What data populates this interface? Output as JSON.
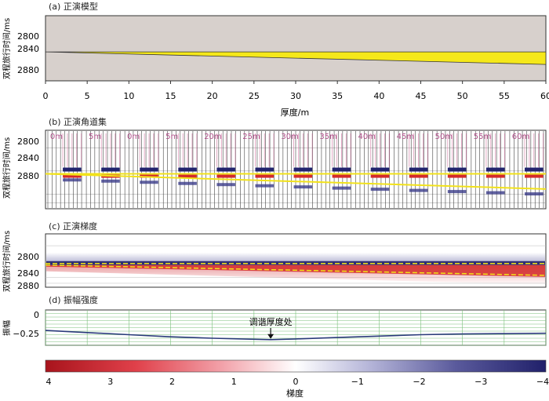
{
  "panels": {
    "a": {
      "caption": "(a)  正演模型",
      "ylabel": "双程旅行时间/ms",
      "yticks": [
        "2800",
        "2840",
        "2880"
      ],
      "xlabel": "厚度/m",
      "xticks": [
        "0",
        "5",
        "10",
        "15",
        "20",
        "25",
        "30",
        "35",
        "40",
        "45",
        "50",
        "55",
        "60"
      ]
    },
    "b": {
      "caption": "(b)  正演角道集",
      "ylabel": "双程旅行时间/ms",
      "yticks": [
        "2800",
        "2840",
        "2880"
      ],
      "gather_labels": [
        "0m",
        "5m",
        "0m",
        "5m",
        "20m",
        "25m",
        "30m",
        "35m",
        "40m",
        "45m",
        "50m",
        "55m",
        "60m"
      ]
    },
    "c": {
      "caption": "(c)  正演梯度",
      "ylabel": "双程旅行时间/ms",
      "yticks": [
        "2800",
        "2840",
        "2880"
      ]
    },
    "d": {
      "caption": "(d)  振幅强度",
      "ylabel": "振幅",
      "yticks": [
        "0",
        "−0.25"
      ],
      "annotation": "调谐厚度处"
    }
  },
  "colorbar": {
    "ticks": [
      "4",
      "3",
      "2",
      "1",
      "0",
      "−1",
      "−2",
      "−3",
      "−4"
    ],
    "label": "梯度",
    "colors": [
      "#a8141c",
      "#e0404a",
      "#f2a0a8",
      "#ffffff",
      "#b4b4d8",
      "#5a5a9c",
      "#20206a"
    ]
  },
  "chart_data": [
    {
      "type": "area",
      "panel": "a",
      "title": "正演模型",
      "xlabel": "厚度/m",
      "ylabel": "双程旅行时间/ms",
      "xlim": [
        0,
        60
      ],
      "ylim": [
        2770,
        2905
      ],
      "x": [
        0,
        60
      ],
      "layer_top": [
        2845,
        2845
      ],
      "layer_bottom": [
        2845,
        2871
      ],
      "colors": {
        "background": "#d7d0cc",
        "layer": "#f5e81a"
      }
    },
    {
      "type": "line",
      "panel": "b",
      "title": "正演角道集",
      "ylabel": "双程旅行时间/ms",
      "ylim": [
        2770,
        2905
      ],
      "gathers": [
        "0m",
        "5m",
        "0m",
        "5m",
        "20m",
        "25m",
        "30m",
        "35m",
        "40m",
        "45m",
        "50m",
        "55m",
        "60m"
      ]
    },
    {
      "type": "heatmap",
      "panel": "c",
      "title": "正演梯度",
      "ylabel": "双程旅行时间/ms",
      "ylim": [
        2770,
        2905
      ],
      "x": [
        0,
        60
      ],
      "top_time": [
        2845,
        2845
      ],
      "bottom_time": [
        2845,
        2871
      ]
    },
    {
      "type": "line",
      "panel": "d",
      "title": "振幅强度",
      "ylabel": "振幅",
      "ylim": [
        -0.45,
        0.05
      ],
      "x": [
        0,
        5,
        10,
        15,
        20,
        25,
        27,
        30,
        35,
        40,
        45,
        50,
        55,
        60
      ],
      "y": [
        -0.24,
        -0.27,
        -0.3,
        -0.33,
        -0.35,
        -0.365,
        -0.37,
        -0.36,
        -0.34,
        -0.32,
        -0.3,
        -0.29,
        -0.285,
        -0.28
      ],
      "annotation": {
        "text": "调谐厚度处",
        "x": 27
      }
    },
    {
      "type": "colorbar",
      "label": "梯度",
      "range": [
        4,
        -4
      ],
      "ticks": [
        4,
        3,
        2,
        1,
        0,
        -1,
        -2,
        -3,
        -4
      ]
    }
  ]
}
